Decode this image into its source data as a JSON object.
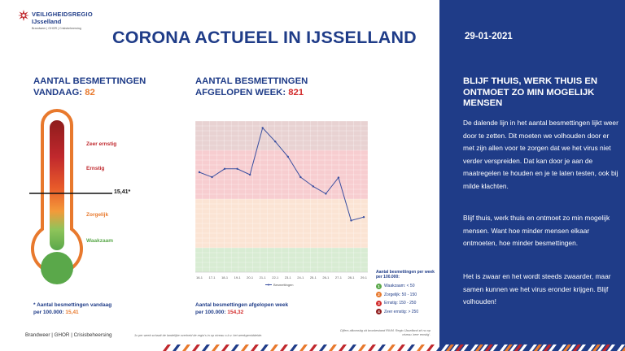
{
  "header": {
    "logo_line1": "VEILIGHEIDSREGIO",
    "logo_line2": "IJsselland",
    "logo_line3": "Brandweer | GHOR | Crisisbeheersing",
    "title": "CORONA ACTUEEL IN IJSSELLAND"
  },
  "today": {
    "heading_line1": "AANTAL BESMETTINGEN",
    "heading_line2": "VANDAAG:",
    "count": "82",
    "zones": [
      "Zeer ernstig",
      "Ernstig",
      "Zorgelijk",
      "Waakzaam"
    ],
    "marker_value": "15,41*",
    "footnote_line1": "* Aantal besmettingen vandaag",
    "footnote_line2_prefix": "per 100.000:",
    "footnote_value": "15,41"
  },
  "week": {
    "heading_line1": "AANTAL BESMETTINGEN",
    "heading_line2": "AFGELOPEN WEEK:",
    "count": "821",
    "footnote_line1": "Aantal besmettingen afgelopen week",
    "footnote_line2_prefix": "per 100.000:",
    "footnote_value": "154,32",
    "legend_title": "Aantal besmettingen per week per 100.000:",
    "legend_items": [
      {
        "num": "1",
        "label": "Waakzaam: < 50",
        "color": "#5aa84a"
      },
      {
        "num": "2",
        "label": "Zorgelijk: 50 - 150",
        "color": "#e8792d"
      },
      {
        "num": "3",
        "label": "Ernstig: 150 - 250",
        "color": "#d22b2b"
      },
      {
        "num": "4",
        "label": "Zeer ernstig: > 250",
        "color": "#8e1c1c"
      }
    ]
  },
  "chart_data": {
    "type": "line",
    "x": [
      "16-1",
      "17-1",
      "18-1",
      "19-1",
      "20-1",
      "21-1",
      "22-1",
      "23-1",
      "24-1",
      "25-1",
      "26-1",
      "27-1",
      "28-1",
      "29-1"
    ],
    "series": [
      {
        "name": "Besmettingen",
        "values": [
          205,
          195,
          212,
          212,
          200,
          296,
          268,
          237,
          195,
          176,
          161,
          194,
          106,
          113
        ]
      }
    ],
    "ylim": [
      0,
      310
    ],
    "bands": [
      {
        "from": 0,
        "to": 50,
        "color": "#d8ecd3"
      },
      {
        "from": 50,
        "to": 150,
        "color": "#fbe4d4"
      },
      {
        "from": 150,
        "to": 250,
        "color": "#f7cdd0"
      },
      {
        "from": 250,
        "to": 310,
        "color": "#e8d2d2"
      }
    ],
    "grid": true,
    "legend": "bottom"
  },
  "side": {
    "date": "29-01-2021",
    "heading": "BLIJF THUIS, WERK THUIS EN ONTMOET ZO MIN MOGELIJK MENSEN",
    "para1": "De dalende lijn in het aantal besmettingen lijkt weer door te zetten. Dit moeten we volhouden door er met zijn allen voor te zorgen dat we het virus niet verder verspreiden. Dat kan door je aan de maatregelen te houden en je te laten testen, ook bij milde klachten.",
    "para2": "Blijf thuis, werk thuis en ontmoet zo min mogelijk mensen. Want hoe minder mensen elkaar ontmoeten, hoe minder besmettingen.",
    "para3": "Het is zwaar en het wordt steeds zwaarder, maar samen kunnen we het virus eronder krijgen. Blijf volhouden!"
  },
  "footer": {
    "text": "Brandweer | GHOR | Crisisbeheersing",
    "source": "Cijfers afkomstig uit bronbestand RIVM. Regio IJsselland zit nu op niveau 'zeer ernstig'.",
    "note": "1x per week schaalt de landelijke overheid de regio's in op niveau o.b.v. het weekgemiddelde."
  },
  "colors": {
    "brand_blue": "#1f3c88",
    "orange": "#e8792d",
    "red": "#d22b2b"
  }
}
